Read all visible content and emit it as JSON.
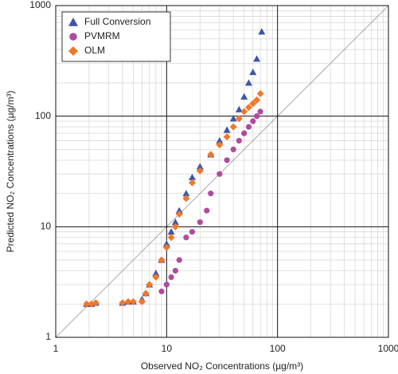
{
  "chart_data": {
    "type": "scatter",
    "x_label": "Observed NO₂ Concentrations (µg/m³)",
    "y_label": "Predicted NO₂ Concentrations (µg/m³)",
    "log_x": true,
    "log_y": true,
    "grid": true,
    "legend": "upper-left",
    "xlim": [
      1,
      1000
    ],
    "ylim": [
      1,
      1000
    ],
    "xticks": [
      1,
      10,
      100,
      1000
    ],
    "yticks": [
      1,
      10,
      100,
      1000
    ],
    "series": [
      {
        "name": "Full Conversion",
        "color": "#3f54a8",
        "marker": "triangle",
        "x": [
          1.9,
          2.1,
          2.3,
          4,
          4.5,
          5,
          6,
          6.5,
          7,
          8,
          9,
          10,
          11,
          12,
          13,
          15,
          17,
          20,
          25,
          30,
          35,
          40,
          45,
          50,
          55,
          60,
          65,
          72
        ],
        "values": [
          2,
          2,
          2.05,
          2.05,
          2.1,
          2.1,
          2.2,
          2.5,
          3,
          3.8,
          5,
          7,
          9,
          11,
          14,
          20,
          28,
          35,
          45,
          60,
          75,
          95,
          115,
          150,
          200,
          250,
          330,
          580
        ]
      },
      {
        "name": "PVMRM",
        "color": "#b04aa0",
        "marker": "circle",
        "x": [
          9,
          10,
          11,
          12,
          13,
          15,
          17,
          20,
          23,
          25,
          30,
          35,
          40,
          45,
          50,
          55,
          60,
          65,
          70
        ],
        "values": [
          2.6,
          3,
          3.5,
          4,
          5,
          8,
          9,
          11,
          14,
          20,
          30,
          40,
          50,
          60,
          70,
          80,
          90,
          100,
          110
        ]
      },
      {
        "name": "OLM",
        "color": "#f07828",
        "marker": "diamond",
        "x": [
          1.9,
          2.1,
          2.3,
          4,
          4.5,
          5,
          6,
          6.5,
          7,
          8,
          9,
          10,
          11,
          12,
          13,
          15,
          17,
          20,
          25,
          30,
          35,
          40,
          45,
          50,
          55,
          60,
          65,
          70
        ],
        "values": [
          2,
          2,
          2.05,
          2.05,
          2.1,
          2.1,
          2.1,
          2.5,
          3,
          3.5,
          5,
          6.5,
          8,
          10,
          13,
          18,
          25,
          32,
          45,
          55,
          65,
          80,
          95,
          110,
          120,
          130,
          140,
          160
        ]
      }
    ]
  }
}
